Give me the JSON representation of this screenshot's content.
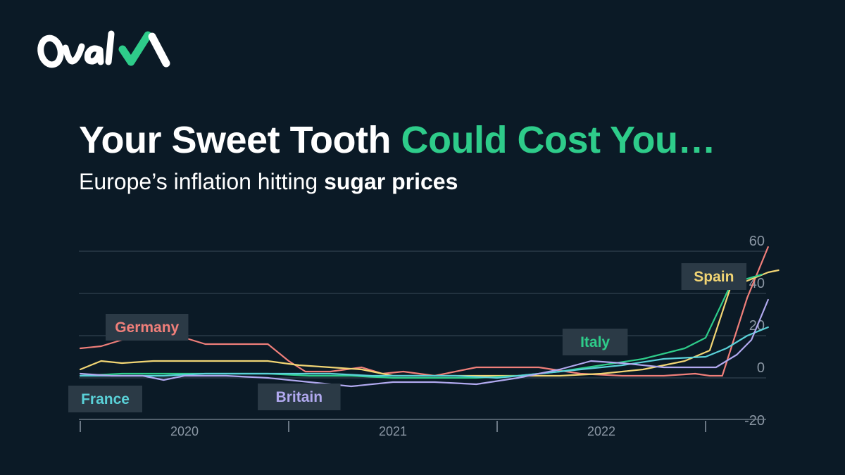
{
  "brand": {
    "name": "OvalX"
  },
  "title": {
    "part1": "Your Sweet Tooth ",
    "part2": "Could Cost You…"
  },
  "subtitle": {
    "part1": "Europe’s inflation hitting ",
    "part2": "sugar prices"
  },
  "colors": {
    "background": "#0b1a26",
    "accent": "#2ecc8a",
    "grid": "#3a4a58",
    "label_box": "#2b3a46",
    "tick_text": "#8a96a3"
  },
  "chart_data": {
    "type": "line",
    "ylim": [
      -20,
      60
    ],
    "yticks": [
      -20,
      0,
      20,
      40,
      60
    ],
    "ytick_labels": [
      "-20",
      "0",
      "20",
      "40",
      "60"
    ],
    "xlim": [
      2020.0,
      2023.0
    ],
    "xticks": [
      2019.5,
      2020.5,
      2021.5,
      2022.5
    ],
    "year_labels": [
      "2020",
      "2021",
      "2022"
    ],
    "year_positions": [
      2020.0,
      2021.0,
      2022.0
    ],
    "grid": true,
    "series": [
      {
        "name": "Germany",
        "color": "#f07f7a",
        "label_at": [
          2019.82,
          24
        ],
        "x": [
          2019.5,
          2019.6,
          2019.7,
          2019.85,
          2020.0,
          2020.1,
          2020.2,
          2020.4,
          2020.5,
          2020.58,
          2020.7,
          2020.85,
          2020.95,
          2021.05,
          2021.2,
          2021.4,
          2021.55,
          2021.7,
          2021.9,
          2022.1,
          2022.3,
          2022.45,
          2022.52,
          2022.58,
          2022.7,
          2022.8
        ],
        "y": [
          14,
          15,
          18,
          21,
          19,
          16,
          16,
          16,
          8,
          3,
          3,
          5,
          2,
          3,
          1,
          5,
          5,
          5,
          2,
          1,
          1,
          2,
          1,
          1,
          38,
          62
        ]
      },
      {
        "name": "Spain",
        "color": "#f2d574",
        "label_at": [
          2022.54,
          48
        ],
        "x": [
          2019.5,
          2019.6,
          2019.7,
          2019.85,
          2020.0,
          2020.2,
          2020.4,
          2020.55,
          2020.7,
          2020.85,
          2021.0,
          2021.2,
          2021.4,
          2021.6,
          2021.8,
          2022.0,
          2022.2,
          2022.4,
          2022.52,
          2022.62,
          2022.7,
          2022.8,
          2022.85
        ],
        "y": [
          4,
          8,
          7,
          8,
          8,
          8,
          8,
          6,
          5,
          4,
          1,
          1,
          1,
          1,
          1,
          2,
          4,
          8,
          13,
          43,
          46,
          50,
          51
        ]
      },
      {
        "name": "Italy",
        "color": "#2ecc8a",
        "label_at": [
          2021.97,
          17
        ],
        "x": [
          2019.5,
          2019.7,
          2019.85,
          2020.0,
          2020.2,
          2020.4,
          2020.6,
          2020.8,
          2021.0,
          2021.2,
          2021.4,
          2021.6,
          2021.8,
          2022.0,
          2022.2,
          2022.4,
          2022.5,
          2022.62,
          2022.7,
          2022.77
        ],
        "y": [
          1,
          2,
          2,
          2,
          2,
          2,
          1,
          1,
          0,
          0,
          0,
          1,
          3,
          6,
          9,
          14,
          19,
          44,
          47,
          49
        ]
      },
      {
        "name": "France",
        "color": "#5ad1d8",
        "label_at": [
          2019.62,
          -10
        ],
        "x": [
          2019.5,
          2019.7,
          2019.9,
          2020.1,
          2020.3,
          2020.5,
          2020.7,
          2020.9,
          2021.1,
          2021.3,
          2021.5,
          2021.7,
          2021.9,
          2022.1,
          2022.3,
          2022.5,
          2022.6,
          2022.7,
          2022.8
        ],
        "y": [
          1,
          1,
          1,
          2,
          2,
          2,
          2,
          1,
          1,
          1,
          0,
          2,
          4,
          6,
          9,
          10,
          14,
          20,
          24
        ]
      },
      {
        "name": "Britain",
        "color": "#b1a9ef",
        "label_at": [
          2020.55,
          -9
        ],
        "x": [
          2019.5,
          2019.65,
          2019.8,
          2019.9,
          2020.0,
          2020.2,
          2020.4,
          2020.6,
          2020.8,
          2021.0,
          2021.2,
          2021.4,
          2021.6,
          2021.8,
          2021.95,
          2022.1,
          2022.3,
          2022.45,
          2022.55,
          2022.65,
          2022.72,
          2022.8
        ],
        "y": [
          2,
          1,
          1,
          -1,
          1,
          1,
          0,
          -2,
          -4,
          -2,
          -2,
          -3,
          0,
          4,
          8,
          7,
          5,
          5,
          5,
          11,
          18,
          37
        ]
      }
    ]
  }
}
